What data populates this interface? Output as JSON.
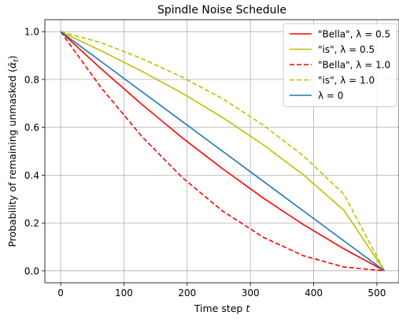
{
  "chart_data": {
    "type": "line",
    "title": "Spindle Noise Schedule",
    "xlabel": "Time step t",
    "ylabel": "Probability of remaining unmasked (ᾱ_t)",
    "xlim": [
      -25,
      535
    ],
    "ylim": [
      -0.05,
      1.05
    ],
    "xticks": [
      0,
      100,
      200,
      300,
      400,
      500
    ],
    "yticks": [
      0.0,
      0.2,
      0.4,
      0.6,
      0.8,
      1.0
    ],
    "grid": true,
    "legend_position": "top-right",
    "series": [
      {
        "name": "\"Bella\", λ = 0.5",
        "color": "#ff0000",
        "dash": "solid",
        "x": [
          0,
          64,
          128,
          192,
          256,
          320,
          384,
          448,
          512
        ],
        "y": [
          1.0,
          0.845,
          0.697,
          0.557,
          0.427,
          0.305,
          0.193,
          0.092,
          0.0
        ]
      },
      {
        "name": "\"is\", λ = 0.5",
        "color": "#bfbf00",
        "dash": "solid",
        "x": [
          0,
          64,
          128,
          192,
          256,
          320,
          384,
          448,
          512
        ],
        "y": [
          1.0,
          0.92,
          0.835,
          0.743,
          0.641,
          0.528,
          0.401,
          0.253,
          0.0
        ]
      },
      {
        "name": "\"Bella\", λ = 1.0",
        "color": "#ff0000",
        "dash": "dashed",
        "x": [
          0,
          64,
          128,
          192,
          256,
          320,
          384,
          448,
          512
        ],
        "y": [
          1.0,
          0.766,
          0.563,
          0.391,
          0.25,
          0.141,
          0.063,
          0.016,
          0.0
        ]
      },
      {
        "name": "\"is\", λ = 1.0",
        "color": "#bfbf00",
        "dash": "dashed",
        "x": [
          0,
          64,
          128,
          192,
          256,
          320,
          384,
          448,
          512
        ],
        "y": [
          1.0,
          0.954,
          0.888,
          0.81,
          0.72,
          0.61,
          0.48,
          0.32,
          0.0
        ]
      },
      {
        "name": "λ = 0",
        "color": "#1f77b4",
        "dash": "solid",
        "x": [
          0,
          64,
          128,
          192,
          256,
          320,
          384,
          448,
          512
        ],
        "y": [
          1.0,
          0.875,
          0.75,
          0.625,
          0.5,
          0.375,
          0.25,
          0.125,
          0.0
        ]
      }
    ]
  }
}
